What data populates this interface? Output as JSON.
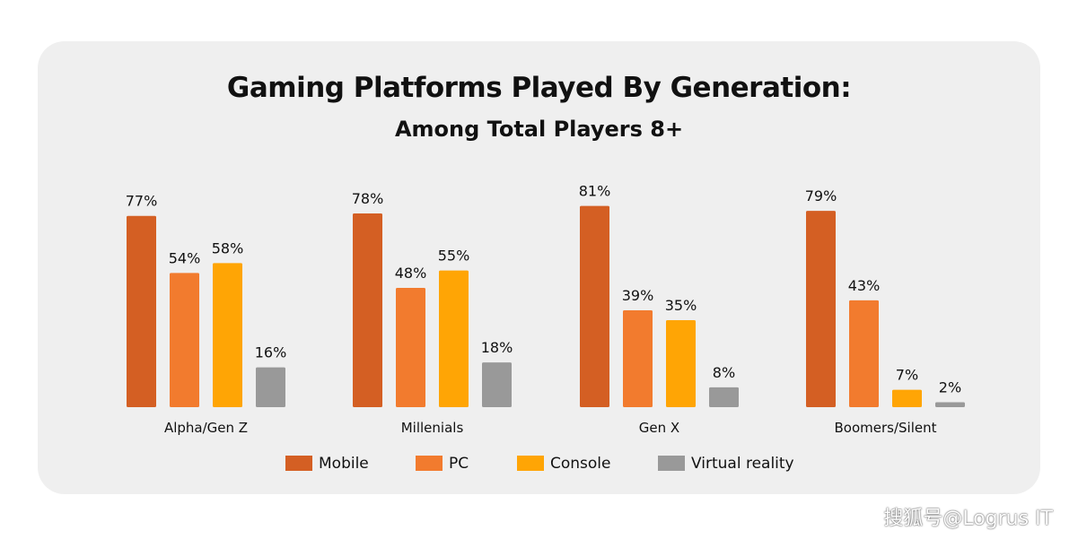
{
  "watermark": "搜狐号@Logrus IT",
  "chart_data": {
    "type": "bar",
    "title": "Gaming Platforms Played By Generation:",
    "subtitle": "Among Total Players 8+",
    "xlabel": "",
    "ylabel": "",
    "ylim": [
      0,
      100
    ],
    "grid": false,
    "legend_position": "bottom",
    "categories": [
      "Alpha/Gen Z",
      "Millenials",
      "Gen X",
      "Boomers/Silent"
    ],
    "series": [
      {
        "name": "Mobile",
        "color": "#d45f23",
        "values": [
          77,
          78,
          81,
          79
        ]
      },
      {
        "name": "PC",
        "color": "#f27b2e",
        "values": [
          54,
          48,
          39,
          43
        ]
      },
      {
        "name": "Console",
        "color": "#ffa505",
        "values": [
          58,
          55,
          35,
          7
        ]
      },
      {
        "name": "Virtual reality",
        "color": "#999999",
        "values": [
          16,
          18,
          8,
          2
        ]
      }
    ],
    "value_suffix": "%"
  }
}
